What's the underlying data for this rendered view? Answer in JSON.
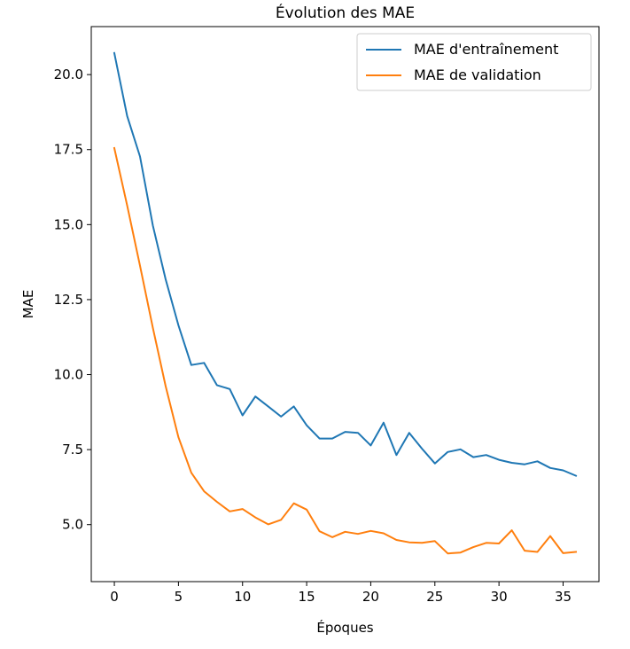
{
  "chart_data": {
    "type": "line",
    "title": "Évolution des MAE",
    "xlabel": "Époques",
    "ylabel": "MAE",
    "xlim": [
      -1.8,
      37.8
    ],
    "ylim": [
      3.1,
      21.6
    ],
    "xticks": [
      0,
      5,
      10,
      15,
      20,
      25,
      30,
      35
    ],
    "yticks": [
      5.0,
      7.5,
      10.0,
      12.5,
      15.0,
      17.5,
      20.0
    ],
    "xtick_labels": [
      "0",
      "5",
      "10",
      "15",
      "20",
      "25",
      "30",
      "35"
    ],
    "ytick_labels": [
      "5.0",
      "7.5",
      "10.0",
      "12.5",
      "15.0",
      "17.5",
      "20.0"
    ],
    "grid": false,
    "legend_position": "top-right",
    "x": [
      0,
      1,
      2,
      3,
      4,
      5,
      6,
      7,
      8,
      9,
      10,
      11,
      12,
      13,
      14,
      15,
      16,
      17,
      18,
      19,
      20,
      21,
      22,
      23,
      24,
      25,
      26,
      27,
      28,
      29,
      30,
      31,
      32,
      33,
      34,
      35,
      36
    ],
    "series": [
      {
        "name": "MAE d'entraînement",
        "color": "#1f77b4",
        "values": [
          20.72,
          18.62,
          17.27,
          14.97,
          13.18,
          11.64,
          10.32,
          10.39,
          9.65,
          9.52,
          8.64,
          9.27,
          8.94,
          8.6,
          8.94,
          8.31,
          7.87,
          7.87,
          8.09,
          8.06,
          7.64,
          8.4,
          7.32,
          8.06,
          7.53,
          7.04,
          7.42,
          7.51,
          7.25,
          7.32,
          7.16,
          7.06,
          7.01,
          7.11,
          6.89,
          6.81,
          6.63
        ]
      },
      {
        "name": "MAE de validation",
        "color": "#ff7f0e",
        "values": [
          17.55,
          15.64,
          13.63,
          11.56,
          9.62,
          7.91,
          6.73,
          6.11,
          5.76,
          5.44,
          5.52,
          5.24,
          5.01,
          5.16,
          5.71,
          5.5,
          4.78,
          4.58,
          4.76,
          4.69,
          4.79,
          4.71,
          4.49,
          4.41,
          4.39,
          4.45,
          4.04,
          4.07,
          4.25,
          4.39,
          4.37,
          4.81,
          4.13,
          4.09,
          4.62,
          4.05,
          4.09
        ]
      }
    ]
  }
}
